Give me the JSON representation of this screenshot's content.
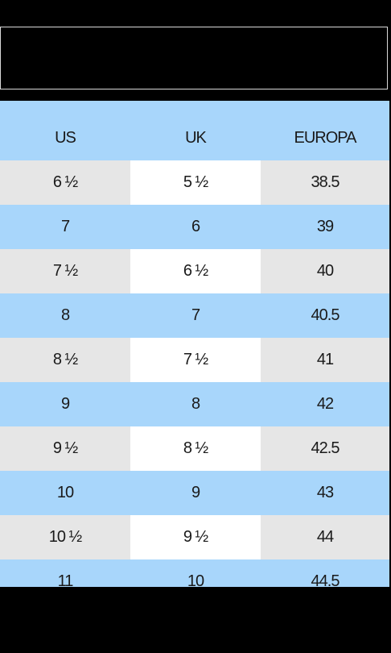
{
  "table": {
    "headers": [
      "US",
      "UK",
      "EUROPA"
    ],
    "rows": [
      [
        "6 ½",
        "5 ½",
        "38.5"
      ],
      [
        "7",
        "6",
        "39"
      ],
      [
        "7 ½",
        "6 ½",
        "40"
      ],
      [
        "8",
        "7",
        "40.5"
      ],
      [
        "8 ½",
        "7 ½",
        "41"
      ],
      [
        "9",
        "8",
        "42"
      ],
      [
        "9 ½",
        "8 ½",
        "42.5"
      ],
      [
        "10",
        "9",
        "43"
      ],
      [
        "10 ½",
        "9 ½",
        "44"
      ],
      [
        "11",
        "10",
        "44.5"
      ]
    ]
  },
  "colors": {
    "header_blue": "#a8d6fb",
    "row_grey": "#e6e6e6",
    "row_white": "#ffffff",
    "background": "#000000"
  }
}
